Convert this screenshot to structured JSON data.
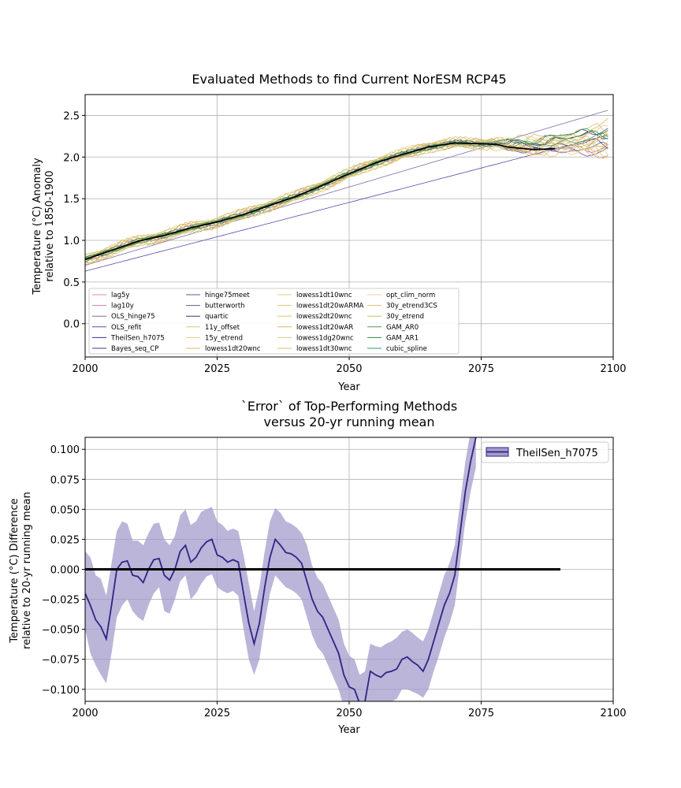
{
  "chart_data": [
    {
      "type": "line",
      "title": "Evaluated Methods to find Current NorESM RCP45",
      "xlabel": "Year",
      "ylabel_line1": "Temperature (°C) Anomaly",
      "ylabel_line2": "relative to 1850-1900",
      "xlim": [
        2000,
        2100
      ],
      "ylim": [
        -0.4,
        2.75
      ],
      "x_ticks": [
        2000,
        2025,
        2050,
        2075,
        2100
      ],
      "y_ticks": [
        0.0,
        0.5,
        1.0,
        1.5,
        2.0,
        2.5
      ],
      "grid": true,
      "legend_position": "lower-left",
      "legend": [
        {
          "name": "lag5y",
          "color": "#e78aa0"
        },
        {
          "name": "lag10y",
          "color": "#d07aa8"
        },
        {
          "name": "OLS_hinge75",
          "color": "#7a6aa8"
        },
        {
          "name": "OLS_refit",
          "color": "#5a4ab0"
        },
        {
          "name": "TheilSen_h7075",
          "color": "#3c2a98"
        },
        {
          "name": "Bayes_seq_CP",
          "color": "#4a3a80"
        },
        {
          "name": "hinge75meet",
          "color": "#5a5a9a"
        },
        {
          "name": "butterworth",
          "color": "#6a5a8a"
        },
        {
          "name": "quartic",
          "color": "#3a3a6a"
        },
        {
          "name": "11y_offset",
          "color": "#e0c070"
        },
        {
          "name": "15y_etrend",
          "color": "#e8c880"
        },
        {
          "name": "lowess1dt20wnc",
          "color": "#d8b860"
        },
        {
          "name": "lowess1dt10wnc",
          "color": "#e6cc80"
        },
        {
          "name": "lowess1dt20wARMA",
          "color": "#dcc070"
        },
        {
          "name": "lowess2dt20wnc",
          "color": "#e0c478"
        },
        {
          "name": "lowess1dt20wAR",
          "color": "#d4b868"
        },
        {
          "name": "lowess1dg20wnc",
          "color": "#e2c880"
        },
        {
          "name": "lowess1dt30wnc",
          "color": "#dcbc70"
        },
        {
          "name": "opt_clim_norm",
          "color": "#e6d090"
        },
        {
          "name": "30y_etrend3CS",
          "color": "#d8c070"
        },
        {
          "name": "30y_etrend",
          "color": "#c8c070"
        },
        {
          "name": "GAM_AR0",
          "color": "#4a9a4a"
        },
        {
          "name": "GAM_AR1",
          "color": "#2a8a3a"
        },
        {
          "name": "cubic_spline",
          "color": "#3a9a5a"
        }
      ],
      "reference_series": {
        "color": "#000000",
        "x": [
          2000,
          2005,
          2010,
          2015,
          2020,
          2025,
          2030,
          2035,
          2040,
          2045,
          2050,
          2055,
          2060,
          2065,
          2070,
          2075,
          2078,
          2080,
          2085,
          2089
        ],
        "y": [
          0.77,
          0.88,
          0.99,
          1.06,
          1.15,
          1.22,
          1.31,
          1.42,
          1.53,
          1.66,
          1.8,
          1.93,
          2.03,
          2.12,
          2.17,
          2.16,
          2.15,
          2.12,
          2.09,
          2.1
        ]
      }
    },
    {
      "type": "line",
      "title_line1": "`Error` of Top-Performing Methods",
      "title_line2": "versus 20-yr running mean",
      "xlabel": "Year",
      "ylabel_line1": "Temperature (°C) Difference",
      "ylabel_line2": "relative to 20-yr running mean",
      "xlim": [
        2000,
        2100
      ],
      "ylim": [
        -0.11,
        0.11
      ],
      "x_ticks": [
        2000,
        2025,
        2050,
        2075,
        2100
      ],
      "y_ticks": [
        -0.1,
        -0.075,
        -0.05,
        -0.025,
        0.0,
        0.025,
        0.05,
        0.075,
        0.1
      ],
      "grid": true,
      "legend_position": "top-right",
      "zero_line": {
        "x": [
          2000,
          2090
        ],
        "y": 0.0,
        "color": "#000000"
      },
      "series": [
        {
          "name": "TheilSen_h7075",
          "color": "#2e2585",
          "band_color": "#a39ccc",
          "x": [
            2000,
            2001,
            2002,
            2003,
            2004,
            2005,
            2006,
            2007,
            2008,
            2009,
            2010,
            2011,
            2012,
            2013,
            2014,
            2015,
            2016,
            2017,
            2018,
            2019,
            2020,
            2021,
            2022,
            2023,
            2024,
            2025,
            2026,
            2027,
            2028,
            2029,
            2030,
            2031,
            2032,
            2033,
            2034,
            2035,
            2036,
            2037,
            2038,
            2039,
            2040,
            2041,
            2042,
            2043,
            2044,
            2045,
            2046,
            2047,
            2048,
            2049,
            2050,
            2051,
            2052,
            2053,
            2054,
            2055,
            2056,
            2057,
            2058,
            2059,
            2060,
            2061,
            2062,
            2063,
            2064,
            2065,
            2066,
            2067,
            2068,
            2069,
            2070,
            2071,
            2072,
            2073,
            2074
          ],
          "values": [
            -0.02,
            -0.03,
            -0.042,
            -0.048,
            -0.058,
            -0.03,
            0.0,
            0.006,
            0.007,
            -0.005,
            -0.006,
            -0.011,
            0.0,
            0.008,
            0.009,
            -0.005,
            -0.009,
            0.0,
            0.015,
            0.02,
            0.006,
            0.01,
            0.018,
            0.023,
            0.025,
            0.012,
            0.01,
            0.006,
            0.008,
            0.006,
            -0.02,
            -0.045,
            -0.062,
            -0.045,
            -0.015,
            0.01,
            0.025,
            0.02,
            0.014,
            0.013,
            0.01,
            0.005,
            -0.01,
            -0.025,
            -0.035,
            -0.04,
            -0.05,
            -0.06,
            -0.07,
            -0.088,
            -0.098,
            -0.1,
            -0.112,
            -0.11,
            -0.085,
            -0.088,
            -0.09,
            -0.086,
            -0.085,
            -0.083,
            -0.075,
            -0.073,
            -0.077,
            -0.08,
            -0.085,
            -0.075,
            -0.06,
            -0.045,
            -0.03,
            -0.02,
            -0.005,
            0.03,
            0.065,
            0.09,
            0.11
          ],
          "lower": [
            -0.05,
            -0.07,
            -0.08,
            -0.088,
            -0.095,
            -0.07,
            -0.04,
            -0.03,
            -0.025,
            -0.035,
            -0.04,
            -0.043,
            -0.03,
            -0.02,
            -0.015,
            -0.035,
            -0.037,
            -0.025,
            -0.01,
            -0.005,
            -0.025,
            -0.02,
            -0.012,
            -0.006,
            -0.004,
            -0.015,
            -0.018,
            -0.02,
            -0.018,
            -0.022,
            -0.05,
            -0.075,
            -0.088,
            -0.075,
            -0.045,
            -0.02,
            -0.005,
            -0.01,
            -0.015,
            -0.017,
            -0.02,
            -0.025,
            -0.04,
            -0.055,
            -0.065,
            -0.07,
            -0.08,
            -0.09,
            -0.1,
            -0.115,
            -0.125,
            -0.13,
            -0.135,
            -0.135,
            -0.115,
            -0.115,
            -0.116,
            -0.112,
            -0.11,
            -0.108,
            -0.1,
            -0.1,
            -0.102,
            -0.104,
            -0.107,
            -0.1,
            -0.085,
            -0.072,
            -0.057,
            -0.045,
            -0.03,
            0.005,
            0.04,
            0.065,
            0.085
          ],
          "upper": [
            0.015,
            0.01,
            -0.005,
            -0.008,
            -0.022,
            0.005,
            0.032,
            0.04,
            0.038,
            0.024,
            0.024,
            0.02,
            0.03,
            0.038,
            0.039,
            0.025,
            0.02,
            0.028,
            0.045,
            0.05,
            0.037,
            0.04,
            0.048,
            0.05,
            0.052,
            0.04,
            0.037,
            0.032,
            0.034,
            0.032,
            0.012,
            -0.012,
            -0.035,
            -0.015,
            0.015,
            0.04,
            0.051,
            0.047,
            0.04,
            0.038,
            0.035,
            0.03,
            0.02,
            0.003,
            -0.007,
            -0.012,
            -0.022,
            -0.032,
            -0.042,
            -0.062,
            -0.072,
            -0.075,
            -0.088,
            -0.085,
            -0.062,
            -0.064,
            -0.065,
            -0.062,
            -0.06,
            -0.057,
            -0.052,
            -0.05,
            -0.053,
            -0.057,
            -0.06,
            -0.05,
            -0.035,
            -0.02,
            -0.005,
            0.005,
            0.02,
            0.055,
            0.09,
            0.115,
            0.135
          ]
        }
      ]
    }
  ]
}
